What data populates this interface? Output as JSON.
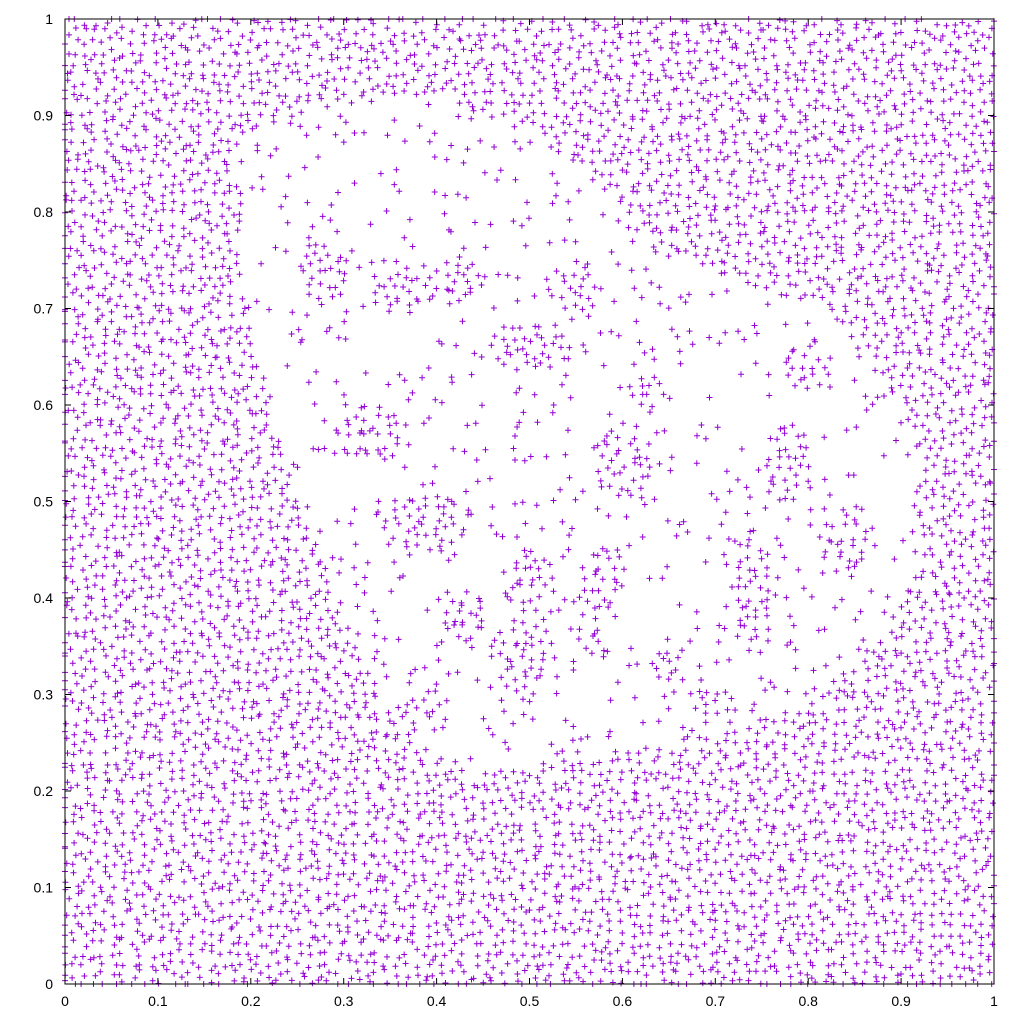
{
  "chart_data": {
    "type": "scatter",
    "title": "",
    "xlabel": "",
    "ylabel": "",
    "xlim": [
      0,
      1
    ],
    "ylim": [
      0,
      1
    ],
    "grid": false,
    "legend": "none",
    "marker": "+",
    "series": [
      {
        "name": "points",
        "color": "#9400d3",
        "background_density": "dense uniform sampling of the unit square",
        "sparse_region_outline": [
          [
            0.19,
            0.88
          ],
          [
            0.28,
            0.91
          ],
          [
            0.4,
            0.92
          ],
          [
            0.5,
            0.88
          ],
          [
            0.58,
            0.83
          ],
          [
            0.63,
            0.76
          ],
          [
            0.72,
            0.73
          ],
          [
            0.82,
            0.7
          ],
          [
            0.88,
            0.63
          ],
          [
            0.92,
            0.55
          ],
          [
            0.92,
            0.44
          ],
          [
            0.88,
            0.36
          ],
          [
            0.8,
            0.29
          ],
          [
            0.7,
            0.26
          ],
          [
            0.6,
            0.24
          ],
          [
            0.5,
            0.22
          ],
          [
            0.43,
            0.22
          ],
          [
            0.36,
            0.26
          ],
          [
            0.31,
            0.36
          ],
          [
            0.26,
            0.48
          ],
          [
            0.22,
            0.6
          ],
          [
            0.19,
            0.72
          ]
        ],
        "dense_blobs": [
          {
            "x": 0.28,
            "y": 0.74,
            "rx": 0.025,
            "ry": 0.035
          },
          {
            "x": 0.36,
            "y": 0.72,
            "rx": 0.03,
            "ry": 0.03
          },
          {
            "x": 0.42,
            "y": 0.73,
            "rx": 0.03,
            "ry": 0.025
          },
          {
            "x": 0.5,
            "y": 0.66,
            "rx": 0.045,
            "ry": 0.03
          },
          {
            "x": 0.55,
            "y": 0.72,
            "rx": 0.03,
            "ry": 0.03
          },
          {
            "x": 0.33,
            "y": 0.57,
            "rx": 0.04,
            "ry": 0.03
          },
          {
            "x": 0.39,
            "y": 0.48,
            "rx": 0.05,
            "ry": 0.03
          },
          {
            "x": 0.6,
            "y": 0.54,
            "rx": 0.035,
            "ry": 0.035
          },
          {
            "x": 0.63,
            "y": 0.61,
            "rx": 0.02,
            "ry": 0.02
          },
          {
            "x": 0.5,
            "y": 0.42,
            "rx": 0.03,
            "ry": 0.035
          },
          {
            "x": 0.58,
            "y": 0.42,
            "rx": 0.025,
            "ry": 0.035
          },
          {
            "x": 0.49,
            "y": 0.34,
            "rx": 0.025,
            "ry": 0.05
          },
          {
            "x": 0.57,
            "y": 0.36,
            "rx": 0.02,
            "ry": 0.025
          },
          {
            "x": 0.65,
            "y": 0.33,
            "rx": 0.02,
            "ry": 0.025
          },
          {
            "x": 0.74,
            "y": 0.4,
            "rx": 0.025,
            "ry": 0.06
          },
          {
            "x": 0.78,
            "y": 0.54,
            "rx": 0.03,
            "ry": 0.04
          },
          {
            "x": 0.8,
            "y": 0.64,
            "rx": 0.03,
            "ry": 0.03
          },
          {
            "x": 0.84,
            "y": 0.46,
            "rx": 0.025,
            "ry": 0.03
          },
          {
            "x": 0.69,
            "y": 0.29,
            "rx": 0.02,
            "ry": 0.02
          },
          {
            "x": 0.37,
            "y": 0.28,
            "rx": 0.02,
            "ry": 0.02
          },
          {
            "x": 0.43,
            "y": 0.38,
            "rx": 0.03,
            "ry": 0.025
          }
        ]
      }
    ],
    "x_ticks": [
      "0",
      "0.1",
      "0.2",
      "0.3",
      "0.4",
      "0.5",
      "0.6",
      "0.7",
      "0.8",
      "0.9",
      "1"
    ],
    "y_ticks": [
      "0",
      "0.1",
      "0.2",
      "0.3",
      "0.4",
      "0.5",
      "0.6",
      "0.7",
      "0.8",
      "0.9",
      "1"
    ]
  }
}
